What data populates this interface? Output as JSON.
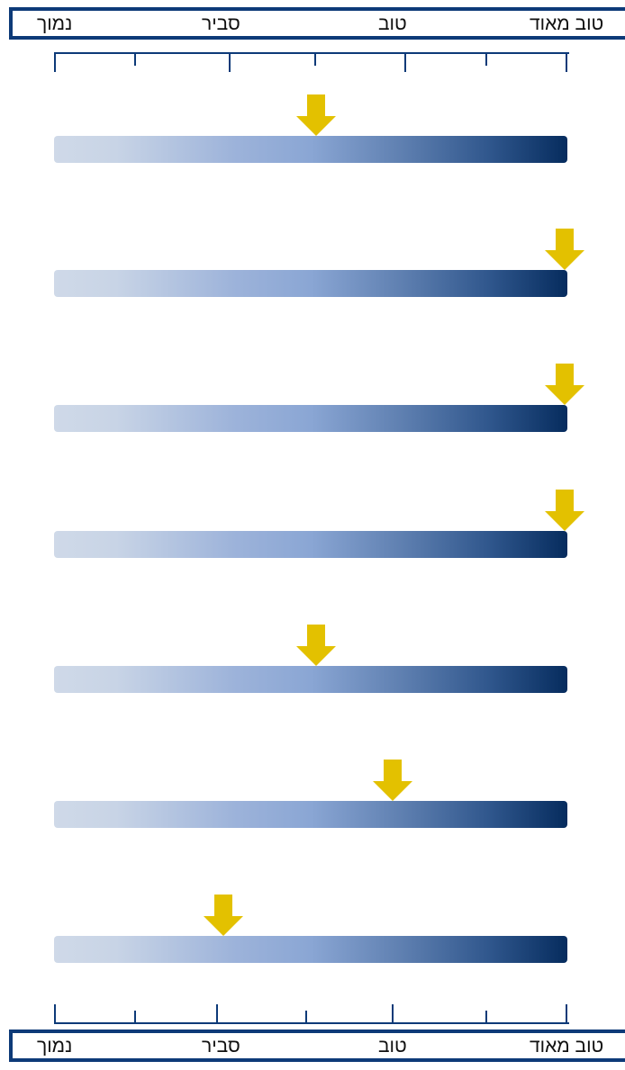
{
  "scale": {
    "labels": [
      "נמוך",
      "סביר",
      "טוב",
      "טוב מאוד"
    ]
  },
  "colors": {
    "frame": "#0d3a78",
    "arrow": "#e3c100",
    "bar_start": "#cfd9e8",
    "bar_end": "#062c5e"
  },
  "chart_data": {
    "type": "bar",
    "orientation": "horizontal",
    "scale_range": [
      0,
      1
    ],
    "scale_labels": [
      "נמוך",
      "סביר",
      "טוב",
      "טוב מאוד"
    ],
    "values": [
      0.51,
      0.995,
      0.995,
      0.995,
      0.51,
      0.66,
      0.33
    ],
    "grid": false
  }
}
